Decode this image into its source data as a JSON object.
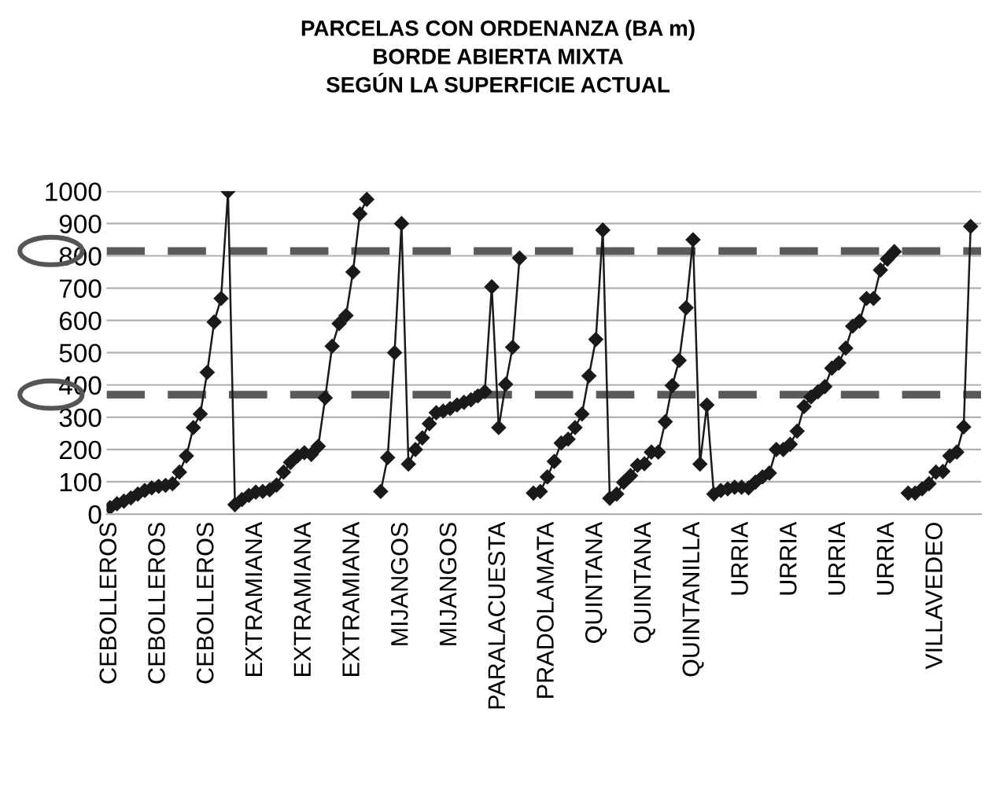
{
  "chart_data": {
    "type": "line",
    "title": "PARCELAS CON ORDENANZA (BA m)\nBORDE ABIERTA MIXTA\nSEGÚN LA SUPERFICIE ACTUAL",
    "categories": [
      "CEBOLLEROS",
      null,
      null,
      null,
      null,
      null,
      null,
      "CEBOLLEROS",
      null,
      null,
      null,
      null,
      null,
      null,
      "CEBOLLEROS",
      null,
      null,
      null,
      null,
      null,
      null,
      "EXTRAMIANA",
      null,
      null,
      null,
      null,
      null,
      null,
      "EXTRAMIANA",
      null,
      null,
      null,
      null,
      null,
      null,
      "EXTRAMIANA",
      null,
      null,
      null,
      null,
      null,
      null,
      "MIJANGOS",
      null,
      null,
      null,
      null,
      null,
      null,
      "MIJANGOS",
      null,
      null,
      null,
      null,
      null,
      null,
      "PARALACUESTA",
      null,
      null,
      null,
      null,
      null,
      null,
      "PRADOLAMATA",
      null,
      null,
      null,
      null,
      null,
      null,
      "QUINTANA",
      null,
      null,
      null,
      null,
      null,
      null,
      "QUINTANA",
      null,
      null,
      null,
      null,
      null,
      null,
      "QUINTANILLA",
      null,
      null,
      null,
      null,
      null,
      null,
      "URRIA",
      null,
      null,
      null,
      null,
      null,
      null,
      "URRIA",
      null,
      null,
      null,
      null,
      null,
      null,
      "URRIA",
      null,
      null,
      null,
      null,
      null,
      null,
      "URRIA",
      null,
      null,
      null,
      null,
      null,
      null,
      "VILLAVEDEO",
      null,
      null,
      null,
      null,
      null,
      null
    ],
    "series": [
      {
        "color": "#1a1a1a",
        "values": [
          20,
          32,
          40,
          50,
          62,
          73,
          81,
          86,
          89,
          94,
          130,
          180,
          268,
          310,
          439,
          595,
          668,
          1000,
          29,
          45,
          58,
          68,
          70,
          75,
          90,
          130,
          160,
          180,
          190,
          185,
          210,
          360,
          520,
          590,
          615,
          750,
          930,
          975,
          null,
          70,
          175,
          500,
          900,
          155,
          200,
          236,
          280,
          314,
          319,
          327,
          338,
          346,
          354,
          366,
          379,
          704,
          268,
          402,
          517,
          793,
          null,
          65,
          70,
          115,
          163,
          220,
          232,
          268,
          310,
          428,
          541,
          880,
          49,
          62,
          98,
          119,
          151,
          156,
          192,
          192,
          286,
          398,
          476,
          639,
          850,
          155,
          338,
          62,
          73,
          78,
          83,
          83,
          81,
          99,
          115,
          127,
          200,
          200,
          216,
          257,
          333,
          363,
          379,
          395,
          452,
          468,
          514,
          582,
          598,
          668,
          668,
          756,
          790,
          813,
          null,
          65,
          65,
          78,
          94,
          130,
          132,
          180,
          192,
          270,
          891,
          null
        ]
      }
    ],
    "ylim": [
      0,
      1000
    ],
    "yticks": [
      0,
      100,
      200,
      300,
      400,
      500,
      600,
      700,
      800,
      900,
      1000
    ],
    "grid": "y",
    "marker": "diamond",
    "line_style": "solid",
    "legend": false,
    "ref_lines": [
      {
        "axis": "y",
        "value": 815,
        "color": "#5a5a5a",
        "line_style": "dashed"
      },
      {
        "axis": "y",
        "value": 370,
        "color": "#5a5a5a",
        "line_style": "dashed"
      }
    ]
  }
}
